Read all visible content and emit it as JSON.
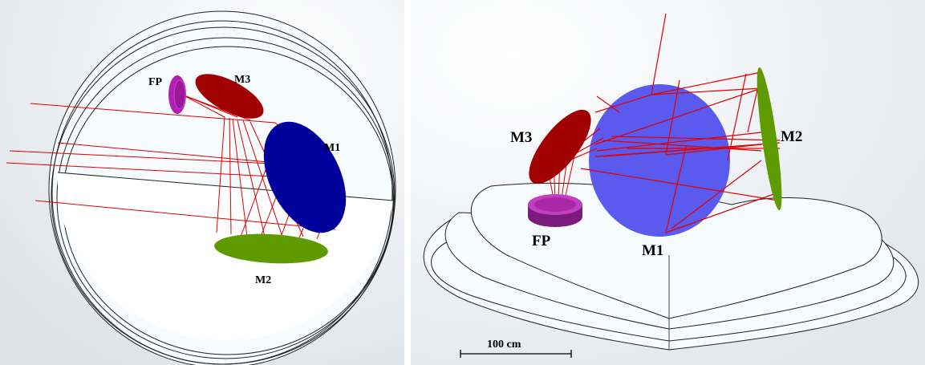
{
  "left_view": {
    "labels": {
      "fp": "FP",
      "m3": "M3",
      "m1": "M1",
      "m2": "M2"
    }
  },
  "right_view": {
    "labels": {
      "m3": "M3",
      "m2": "M2",
      "fp": "FP",
      "m1": "M1"
    },
    "scale_bar_label": "100 cm"
  },
  "colors": {
    "m1": "#00009a",
    "m1_right": "#5a5aee",
    "m2": "#5e9a00",
    "m3": "#a00000",
    "fp": "#8a1a8a",
    "rays": "#e00000"
  }
}
